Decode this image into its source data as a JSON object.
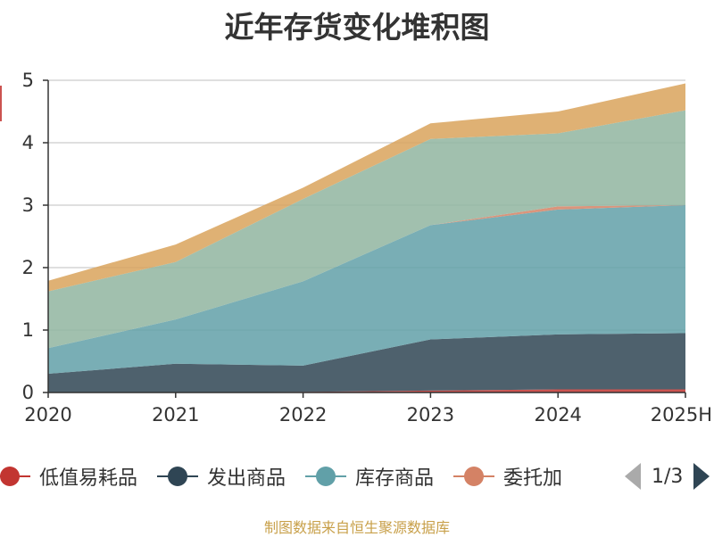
{
  "chart_data": {
    "type": "area",
    "stacked": true,
    "title": "近年存货变化堆积图",
    "xlabel": "",
    "ylabel": "",
    "ylim": [
      0,
      5
    ],
    "yticks": [
      "0",
      "1",
      "2",
      "3",
      "4",
      "5"
    ],
    "categories": [
      "2020",
      "2021",
      "2022",
      "2023",
      "2024",
      "2025H"
    ],
    "grid": true,
    "series": [
      {
        "name": "低值易耗品",
        "color": "#c23531",
        "values": [
          0.0,
          0.0,
          0.01,
          0.03,
          0.05,
          0.05
        ]
      },
      {
        "name": "发出商品",
        "color": "#2f4554",
        "values": [
          0.3,
          0.46,
          0.42,
          0.82,
          0.88,
          0.9
        ]
      },
      {
        "name": "库存商品",
        "color": "#61a0a8",
        "values": [
          0.41,
          0.71,
          1.35,
          1.83,
          2.0,
          2.05
        ]
      },
      {
        "name": "委托加工物资",
        "color": "#d48265",
        "values": [
          0.0,
          0.0,
          0.0,
          0.0,
          0.05,
          0.0
        ]
      },
      {
        "series_hidden_on_legend_page": true,
        "color": "#91b5a0",
        "values": [
          0.91,
          0.92,
          1.32,
          1.38,
          1.17,
          1.52
        ]
      },
      {
        "series_hidden_on_legend_page": true,
        "color": "#d9a35c",
        "values": [
          0.17,
          0.28,
          0.18,
          0.25,
          0.35,
          0.43
        ]
      }
    ]
  },
  "legend": {
    "items": [
      {
        "label": "低值易耗品",
        "color": "#c23531"
      },
      {
        "label": "发出商品",
        "color": "#2f4554"
      },
      {
        "label": "库存商品",
        "color": "#61a0a8"
      },
      {
        "label": "委托加",
        "color": "#d48265"
      }
    ],
    "page": "1/3"
  },
  "source": "制图数据来自恒生聚源数据库"
}
